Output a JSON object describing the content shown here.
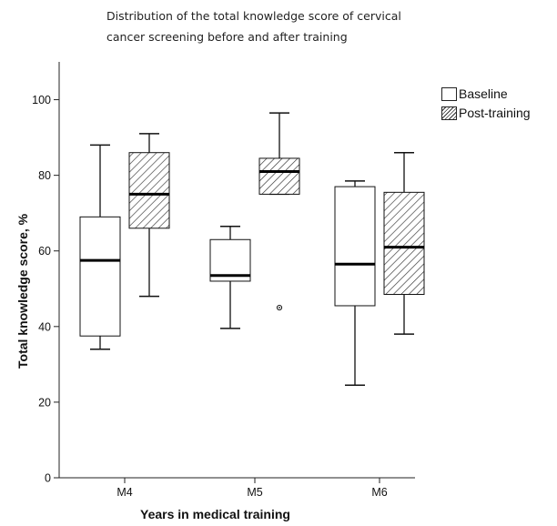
{
  "chart_data": {
    "type": "boxplot",
    "title_lines": [
      "Distribution of the total knowledge score of cervical",
      "cancer screening before and after training"
    ],
    "xlabel": "Years in medical training",
    "ylabel": "Total knowledge score, %",
    "categories": [
      "M4",
      "M5",
      "M6"
    ],
    "ylim": [
      0,
      110
    ],
    "yticks": [
      0,
      20,
      40,
      60,
      80,
      100
    ],
    "legend": {
      "position": "top-right"
    },
    "series": [
      {
        "name": "Baseline",
        "pattern": "solid-white",
        "boxes": [
          {
            "min": 34,
            "q1": 37.5,
            "median": 57.5,
            "q3": 69,
            "max": 88,
            "outliers": []
          },
          {
            "min": 39.5,
            "q1": 52,
            "median": 53.5,
            "q3": 63,
            "max": 66.5,
            "outliers": []
          },
          {
            "min": 24.5,
            "q1": 45.5,
            "median": 56.5,
            "q3": 77,
            "max": 78.5,
            "outliers": []
          }
        ]
      },
      {
        "name": "Post-training",
        "pattern": "hatched",
        "boxes": [
          {
            "min": 48,
            "q1": 66,
            "median": 75,
            "q3": 86,
            "max": 91,
            "outliers": []
          },
          {
            "min": 75,
            "q1": 75,
            "median": 81,
            "q3": 84.5,
            "max": 96.5,
            "outliers": [
              45
            ]
          },
          {
            "min": 38,
            "q1": 48.5,
            "median": 61,
            "q3": 75.5,
            "max": 86,
            "outliers": []
          }
        ]
      }
    ]
  }
}
